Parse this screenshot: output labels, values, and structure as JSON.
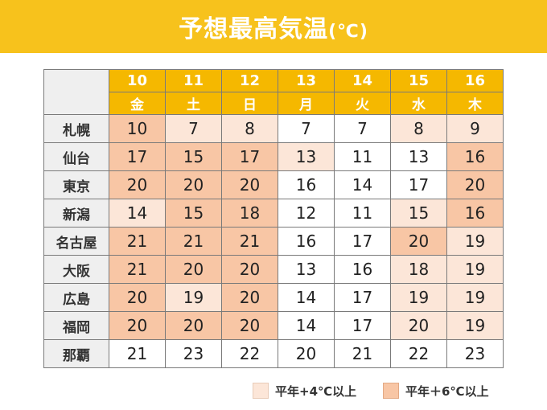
{
  "header": {
    "title": "予想最高気温",
    "unit": "(℃)"
  },
  "days": [
    {
      "date": "10",
      "weekday": "金"
    },
    {
      "date": "11",
      "weekday": "土"
    },
    {
      "date": "12",
      "weekday": "日"
    },
    {
      "date": "13",
      "weekday": "月"
    },
    {
      "date": "14",
      "weekday": "火"
    },
    {
      "date": "15",
      "weekday": "水"
    },
    {
      "date": "16",
      "weekday": "木"
    }
  ],
  "rows": [
    {
      "city": "札幌",
      "values": [
        "10",
        "7",
        "8",
        "7",
        "7",
        "8",
        "9"
      ],
      "levels": [
        2,
        1,
        1,
        0,
        0,
        1,
        1
      ]
    },
    {
      "city": "仙台",
      "values": [
        "17",
        "15",
        "17",
        "13",
        "11",
        "13",
        "16"
      ],
      "levels": [
        2,
        2,
        2,
        1,
        0,
        0,
        2
      ]
    },
    {
      "city": "東京",
      "values": [
        "20",
        "20",
        "20",
        "16",
        "14",
        "17",
        "20"
      ],
      "levels": [
        2,
        2,
        2,
        0,
        0,
        0,
        2
      ]
    },
    {
      "city": "新潟",
      "values": [
        "14",
        "15",
        "18",
        "12",
        "11",
        "15",
        "16"
      ],
      "levels": [
        1,
        2,
        2,
        0,
        0,
        1,
        2
      ]
    },
    {
      "city": "名古屋",
      "values": [
        "21",
        "21",
        "21",
        "16",
        "17",
        "20",
        "19"
      ],
      "levels": [
        2,
        2,
        2,
        0,
        0,
        2,
        1
      ]
    },
    {
      "city": "大阪",
      "values": [
        "21",
        "20",
        "20",
        "13",
        "16",
        "18",
        "19"
      ],
      "levels": [
        2,
        2,
        2,
        0,
        0,
        1,
        1
      ]
    },
    {
      "city": "広島",
      "values": [
        "20",
        "19",
        "20",
        "14",
        "17",
        "19",
        "19"
      ],
      "levels": [
        2,
        1,
        2,
        0,
        0,
        1,
        1
      ]
    },
    {
      "city": "福岡",
      "values": [
        "20",
        "20",
        "20",
        "14",
        "17",
        "20",
        "19"
      ],
      "levels": [
        2,
        2,
        2,
        0,
        0,
        1,
        1
      ]
    },
    {
      "city": "那覇",
      "values": [
        "21",
        "23",
        "22",
        "20",
        "21",
        "22",
        "23"
      ],
      "levels": [
        0,
        0,
        0,
        0,
        0,
        0,
        0
      ]
    }
  ],
  "legend": [
    {
      "label": "平年+4℃以上",
      "color": "#fce6d8"
    },
    {
      "label": "平年＋6℃以上",
      "color": "#f8c6a5"
    }
  ],
  "colors": {
    "header_bg": "#f7c21c",
    "day_header_bg": "#f5b800",
    "level_1": "#fce6d8",
    "level_2": "#f8c6a5"
  }
}
